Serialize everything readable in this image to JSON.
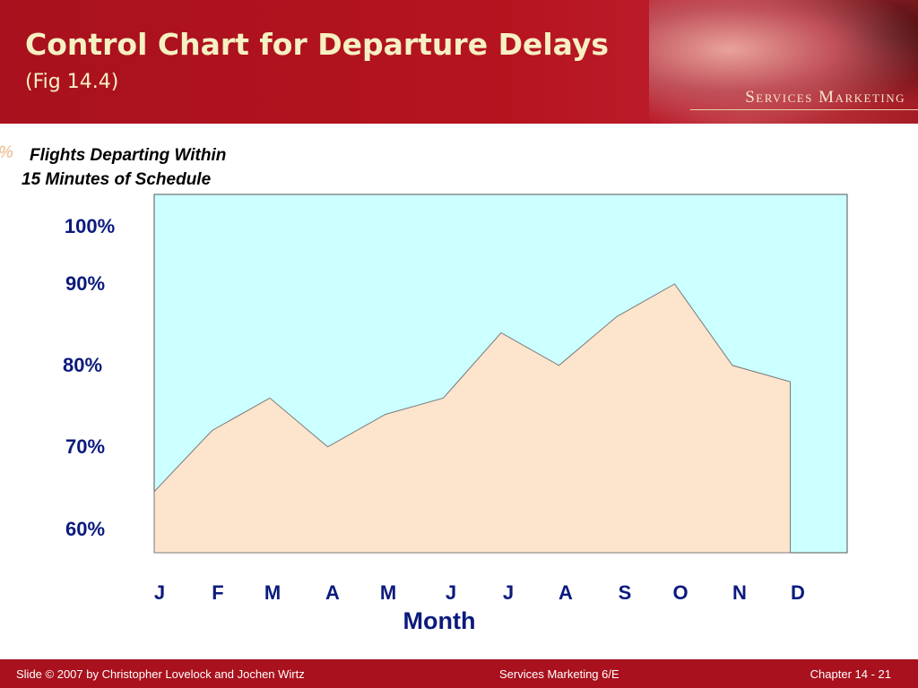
{
  "header": {
    "title": "Control Chart for Departure Delays",
    "subtitle": "(Fig 14.4)",
    "brand": "Services Marketing"
  },
  "chart_data": {
    "type": "area",
    "title": "Control Chart for Departure Delays",
    "subtitle": "(Fig 14.4)",
    "ylabel_prefix": "%",
    "ylabel_line1": "Flights Departing Within",
    "ylabel_line2": "15 Minutes of Schedule",
    "xlabel": "Month",
    "categories": [
      "J",
      "F",
      "M",
      "A",
      "M",
      "J",
      "J",
      "A",
      "S",
      "O",
      "N",
      "D"
    ],
    "series": [
      {
        "values": [
          64.5,
          72,
          76,
          70,
          74,
          76,
          84,
          80,
          86,
          90,
          80,
          78
        ]
      }
    ],
    "ytick_labels": [
      "100%",
      "90%",
      "80%",
      "70%",
      "60%"
    ],
    "ylim": [
      57,
      101
    ],
    "grid": false,
    "colors": {
      "plot_background": "#ccffff",
      "area_fill": "#fde4cc",
      "area_stroke": "#7a7a7a",
      "tick_text": "#0b1a7d"
    }
  },
  "footer": {
    "left": "Slide © 2007 by Christopher Lovelock and Jochen Wirtz",
    "center": "Services Marketing 6/E",
    "right": "Chapter 14 - 21"
  }
}
